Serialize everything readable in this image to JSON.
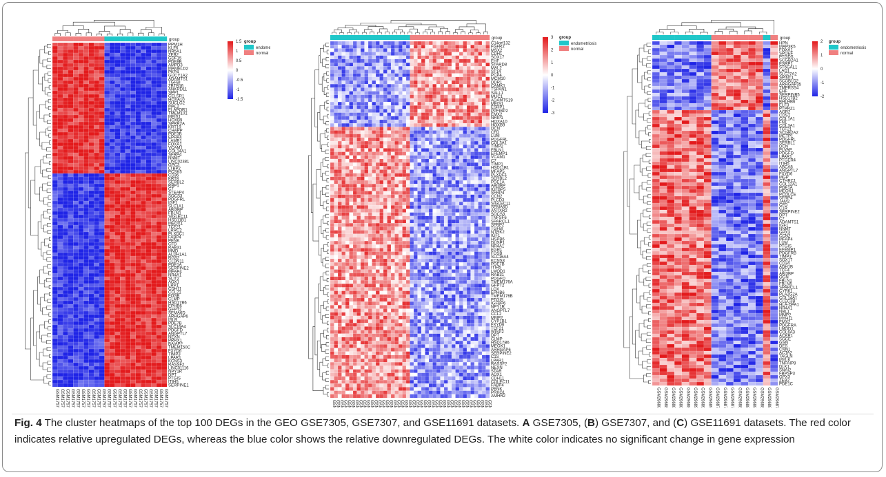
{
  "colors": {
    "high": "#e31a1c",
    "mid": "#ffffff",
    "low": "#1f24e6",
    "endometriosis": "#1fc7c9",
    "normal": "#f08080"
  },
  "legend": {
    "title": "group",
    "endometriosis": "endometriosis",
    "normal": "normal"
  },
  "caption": {
    "fig": "Fig. 4",
    "text1": "The cluster heatmaps of the top 100 DEGs in the GEO GSE7305, GSE7307, and GSE11691 datasets. ",
    "a": "A",
    "text2": " GSE7305, (",
    "b": "B",
    "text3": ") GSE7307, and (",
    "c": "C",
    "text4": ") GSE11691 datasets. The red color indicates relative upregulated DEGs, whereas the blue color shows the relative downregulated DEGs. The white color indicates no significant change in gene expression"
  },
  "panels": [
    {
      "id": "A",
      "scale_ticks": [
        "1.5",
        "1",
        "0.5",
        "0",
        "-0.5",
        "-1",
        "-1.5"
      ],
      "samples": [
        "GSM175779",
        "GSM175788",
        "GSM175780",
        "GSM175785",
        "GSM175776",
        "GSM175786",
        "GSM175787",
        "GSM175781",
        "GSM175778",
        "GSM175782",
        "GSM175789",
        "GSM175770",
        "GSM175772",
        "GSM175768",
        "GSM175773",
        "GSM175766",
        "GSM175771",
        "GSM175775",
        "GSM175769",
        "GSM175774",
        "GSM175767",
        "GSM175777"
      ],
      "genes": [
        "PPM1H",
        "KLF6",
        "NR5A1",
        "ZEB2",
        "GDF15",
        "PDE8B",
        "AMPD3",
        "MAMELD2",
        "PKP4",
        "GUCY1A2",
        "ADAMTS1",
        "TGFBI",
        "ZBTB16",
        "ANKRD11",
        "SPP1",
        "CELSR1",
        "HOXA10",
        "SUCLG2",
        "MAL2",
        "ELAPOR1",
        "TMEM101",
        "MEIS1",
        "HOXB9",
        "SPRR2A",
        "KRT19",
        "CHAPP",
        "PDE3B",
        "EPHA4",
        "LAMB1",
        "FOXA1",
        "VCAM1",
        "COL14A1",
        "SFRP4",
        "NNMT",
        "LINC02381",
        "GPC3",
        "LTBP2",
        "PCSK5",
        "CD36",
        "KRT8",
        "SERBL2",
        "RBP1",
        "C7",
        "STEAP4",
        "SOCS3",
        "PDGFRL",
        "IGF1",
        "SLC1A1",
        "ABI3BP",
        "FBLN1",
        "SIGLEC11",
        "HSD11B1",
        "MEOX1",
        "TCF21",
        "LRRC2",
        "PLXDC1",
        "FABP4",
        "PENK",
        "CFD",
        "RAB31",
        "MMD",
        "ALDH1A1",
        "RGS2",
        "CLDN11",
        "PDE1A",
        "SERPINE2",
        "MFAP4",
        "NR4A1",
        "SLIT2",
        "AOX1",
        "LRP1",
        "CDH11",
        "CCL21",
        "FOSB",
        "CLMP",
        "HSD17B6",
        "EPHB6",
        "GFPT2",
        "SEMA6D",
        "ARHGAP6",
        "ISLR",
        "PDE7B",
        "SLC16A4",
        "PDGFD",
        "ANGPTL7",
        "NEXN",
        "PRRX1",
        "BAIAP2",
        "TMEM150C",
        "FXYD6",
        "TIMP3",
        "LPAR1",
        "KCNS3",
        "RASSF2",
        "LINC01116",
        "NPY1R",
        "DPT",
        "PTGIS",
        "ITIH5",
        "SERPINE1"
      ]
    },
    {
      "id": "B",
      "scale_ticks": [
        "3",
        "2",
        "1",
        "0",
        "-1",
        "-2",
        "-3"
      ],
      "samples": [
        "GSM175791",
        "GSM175792",
        "GSM175793",
        "GSM175794",
        "GSM175795",
        "GSM175796",
        "GSM175797",
        "GSM175798",
        "GSM175799",
        "GSM175800",
        "GSM175801",
        "GSM175802",
        "GSM175803",
        "GSM175804",
        "GSM175805",
        "GSM175806",
        "GSM175807",
        "GSM175808",
        "GSM175809",
        "GSM175810",
        "GSM175811",
        "GSM175812",
        "GSM175813",
        "GSM175814",
        "GSM175815",
        "GSM175816",
        "GSM175817",
        "GSM175818",
        "GSM175819",
        "GSM175820",
        "GSM175821",
        "GSM175822",
        "GSM175823",
        "GSM175824",
        "GSM175825",
        "GSM175826",
        "GSM175827",
        "GSM175828",
        "GSM175829",
        "GSM175830",
        "GSM175831",
        "GSM175832"
      ],
      "genes": [
        "C14orf132",
        "FGFR2",
        "MSX2",
        "CDH1",
        "SOX17",
        "EHF",
        "STARD8",
        "MAL2",
        "ST14",
        "PCP4",
        "MCM10",
        "DDR1",
        "CAMK1",
        "TSPAN1",
        "SALL1",
        "MUC1",
        "ADAMTS19",
        "MEIS1",
        "ESRP1",
        "PPFIBP2",
        "EMX2",
        "NRIP1",
        "HOXA10",
        "HOXB9",
        "DCN",
        "CFD",
        "LUM",
        "PDGFRL",
        "COL3A1",
        "TIMP2",
        "FBLN1",
        "EFEMP1",
        "VCAM1",
        "C7",
        "TIMP1",
        "HSD11B1",
        "MFAP5",
        "PLXDC1",
        "SERBL2",
        "PDE1A",
        "ABI3BP",
        "IGFBP5",
        "SFRP4",
        "CCN2",
        "PLCD3",
        "SIGLEC11",
        "SEMA6D",
        "ANTXR2",
        "SOCS3",
        "TNFSF6",
        "SPARCL1",
        "SFRP2",
        "TGFBI",
        "NTRK2",
        "IGF1",
        "HSPB6",
        "DUSP1",
        "NR4A1",
        "EGR1",
        "FOSB",
        "SLC16A4",
        "KCNS3",
        "PDE7B",
        "ITIH5",
        "LMOD1",
        "RAB31",
        "PDGFD",
        "TMEM176A",
        "GFPT2",
        "LOX",
        "EPHB6",
        "TMEM176B",
        "PTGIS",
        "IGFBP6",
        "NPY1R",
        "ANGPTL7",
        "CCL2",
        "MMP2",
        "CYP1B1",
        "FXYD6",
        "TCF21",
        "WISP2",
        "DPT",
        "CLMP",
        "HSD17B6",
        "MEOX1",
        "ARHGAP6",
        "SERPINE2",
        "C1S",
        "LPAR1",
        "RASSF2",
        "NEXN",
        "STAR",
        "AOX1",
        "CDH11",
        "COLEC11",
        "FABP4",
        "PENK",
        "PRKG1",
        "AMHR2"
      ]
    },
    {
      "id": "C",
      "scale_ticks": [
        "2",
        "1",
        "0",
        "-1",
        "-2"
      ],
      "samples": [
        "GSM296884",
        "GSM296885",
        "GSM296887",
        "GSM296888",
        "GSM296889",
        "GSM296890",
        "GSM296891",
        "GSM296892",
        "GSM296876",
        "GSM296878",
        "GSM296879",
        "GSM296880",
        "GSM296881",
        "GSM296882",
        "GSM296883",
        "GSM296886",
        "GSM296877"
      ],
      "genes": [
        "HPN",
        "MAP3K5",
        "FOXA1",
        "SPDEF",
        "PTGDS",
        "SCGB2A1",
        "ESRP1",
        "ST6GAL1",
        "LAD1",
        "SLC27A2",
        "SPINT1",
        "SCGB1D2",
        "ARHGAP35",
        "TMPRSS4",
        "EHF",
        "SERPINB5",
        "HSD17B2",
        "BHLHB6",
        "ELF3",
        "PTPRZ1",
        "AGR2",
        "CDS1",
        "COL1A1",
        "FN1",
        "COL3A1",
        "TCF21",
        "SCGB2A2",
        "MCTP1",
        "PDGFRL",
        "SERBL1",
        "DCN",
        "PLVAP",
        "PDGFD",
        "LPAR1",
        "PTGER4",
        "ITIH5",
        "ABCA8",
        "ANGPTL7",
        "FXYD6",
        "MGP",
        "CTHRC1",
        "COL12A1",
        "PDE1A",
        "MEOX1",
        "PCOLCE",
        "SFRP4",
        "JAM2",
        "CFD",
        "C1R",
        "SERPINE2",
        "DPT",
        "C7",
        "ADAMTS1",
        "IGF1",
        "NNMT",
        "GPX3",
        "CCN2",
        "MFAP4",
        "LUM",
        "PTGIS",
        "EFEMP1",
        "PDGFRB",
        "TIMP3",
        "SOX17",
        "CD34",
        "ADH1B",
        "TCF4",
        "ABI3BP",
        "OGN",
        "FBLN1",
        "FBLN5",
        "SPARCL1",
        "CYR61",
        "PLA2G2A",
        "COL14A1",
        "CLEC3B",
        "HLA-DPA1",
        "NR4A1",
        "NBL1",
        "MMP2",
        "MYH11",
        "EMX2",
        "PDGFRA",
        "LMOD1",
        "COL6A3",
        "ACKR1",
        "SGCE",
        "GSN",
        "DES",
        "CNN1",
        "ACTA2",
        "TAGLN",
        "MYLK",
        "TNFAIP8",
        "DLK1",
        "SNAI2",
        "FBPSP3",
        "GPX3",
        "ZEB2",
        "PDE1C"
      ]
    }
  ]
}
